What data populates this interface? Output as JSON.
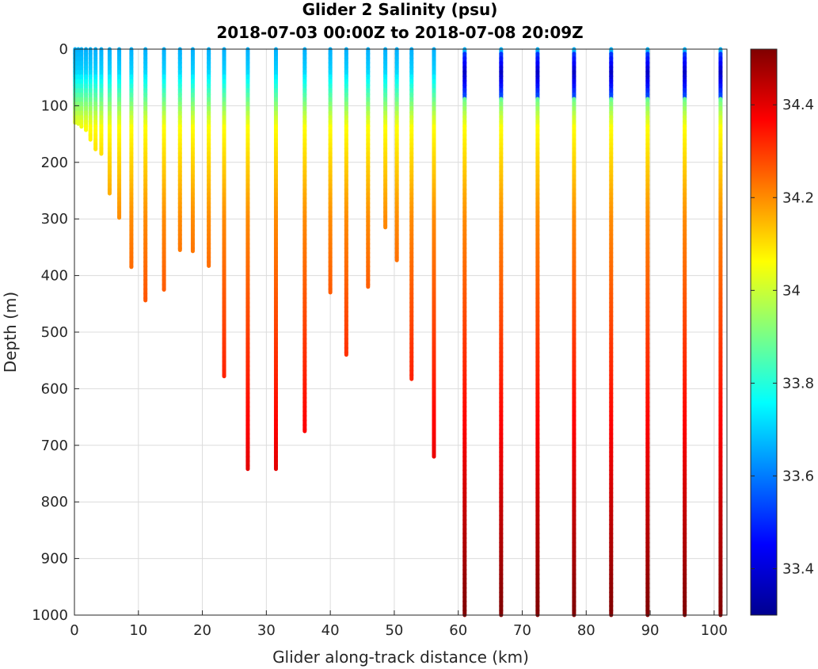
{
  "chart_data": {
    "type": "scatter",
    "title": "Glider 2 Salinity (psu)",
    "subtitle": "2018-07-03 00:00Z to 2018-07-08 20:09Z",
    "xlabel": "Glider along-track distance (km)",
    "ylabel": "Depth (m)",
    "xlim": [
      0,
      102
    ],
    "ylim": [
      0,
      1000
    ],
    "y_reversed": true,
    "grid": true,
    "xticks": [
      "0",
      "10",
      "20",
      "30",
      "40",
      "50",
      "60",
      "70",
      "80",
      "90",
      "100"
    ],
    "yticks": [
      "0",
      "100",
      "200",
      "300",
      "400",
      "500",
      "600",
      "700",
      "800",
      "900",
      "1000"
    ],
    "colorbar": {
      "colormap": "jet",
      "clim": [
        33.3,
        34.52
      ],
      "ticks": [
        "33.4",
        "33.6",
        "33.8",
        "34",
        "34.2",
        "34.4"
      ]
    },
    "profiles": [
      {
        "x": 0.1,
        "max_depth": 130
      },
      {
        "x": 0.6,
        "max_depth": 132
      },
      {
        "x": 1.1,
        "max_depth": 137
      },
      {
        "x": 1.8,
        "max_depth": 143
      },
      {
        "x": 2.5,
        "max_depth": 160
      },
      {
        "x": 3.3,
        "max_depth": 177
      },
      {
        "x": 4.2,
        "max_depth": 185
      },
      {
        "x": 5.5,
        "max_depth": 255
      },
      {
        "x": 7.0,
        "max_depth": 298
      },
      {
        "x": 8.9,
        "max_depth": 385
      },
      {
        "x": 11.1,
        "max_depth": 444
      },
      {
        "x": 14.0,
        "max_depth": 425
      },
      {
        "x": 16.5,
        "max_depth": 355
      },
      {
        "x": 18.5,
        "max_depth": 357
      },
      {
        "x": 21.0,
        "max_depth": 383
      },
      {
        "x": 23.4,
        "max_depth": 578
      },
      {
        "x": 27.1,
        "max_depth": 742
      },
      {
        "x": 31.5,
        "max_depth": 742
      },
      {
        "x": 36.0,
        "max_depth": 675
      },
      {
        "x": 40.0,
        "max_depth": 430
      },
      {
        "x": 42.5,
        "max_depth": 540
      },
      {
        "x": 45.9,
        "max_depth": 420
      },
      {
        "x": 48.6,
        "max_depth": 315
      },
      {
        "x": 50.4,
        "max_depth": 373
      },
      {
        "x": 52.7,
        "max_depth": 583
      },
      {
        "x": 56.2,
        "max_depth": 720
      },
      {
        "x": 61.0,
        "max_depth": 1000
      },
      {
        "x": 66.7,
        "max_depth": 1000
      },
      {
        "x": 72.4,
        "max_depth": 1000
      },
      {
        "x": 78.1,
        "max_depth": 1000
      },
      {
        "x": 83.9,
        "max_depth": 1000
      },
      {
        "x": 89.6,
        "max_depth": 1000
      },
      {
        "x": 95.4,
        "max_depth": 1000
      },
      {
        "x": 101.0,
        "max_depth": 1000
      }
    ]
  }
}
